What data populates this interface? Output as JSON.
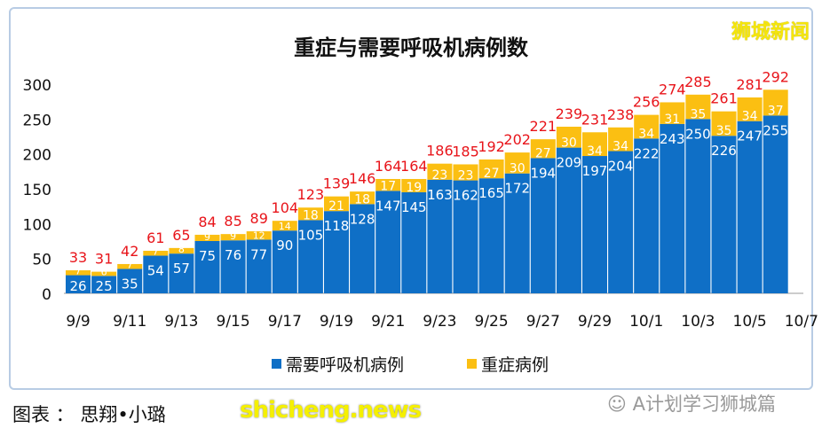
{
  "watermark_logo": "狮城新闻",
  "caption": "图表 ： 思翔•小璐",
  "site_watermark": "shicheng.news",
  "wechat_label": "A计划学习狮城篇",
  "chart_data": {
    "type": "bar",
    "stacked": true,
    "title": "重症与需要呼吸机病例数",
    "xlabel": "",
    "ylabel": "",
    "ylim": [
      0,
      300
    ],
    "yticks": [
      0,
      50,
      100,
      150,
      200,
      250,
      300
    ],
    "categories": [
      "9/9",
      "9/10",
      "9/11",
      "9/12",
      "9/13",
      "9/14",
      "9/15",
      "9/16",
      "9/17",
      "9/18",
      "9/19",
      "9/20",
      "9/21",
      "9/22",
      "9/23",
      "9/24",
      "9/25",
      "9/26",
      "9/27",
      "9/28",
      "9/29",
      "9/30",
      "10/1",
      "10/2",
      "10/3",
      "10/4",
      "10/5",
      "10/6"
    ],
    "xtick_labels": [
      "9/9",
      "9/11",
      "9/13",
      "9/15",
      "9/17",
      "9/19",
      "9/21",
      "9/23",
      "9/25",
      "9/27",
      "9/29",
      "10/1",
      "10/3",
      "10/5",
      "10/7"
    ],
    "series": [
      {
        "name": "需要呼吸机病例",
        "color": "#0f6fc6",
        "values": [
          26,
          25,
          35,
          54,
          57,
          75,
          76,
          77,
          90,
          105,
          118,
          128,
          147,
          145,
          163,
          162,
          165,
          172,
          194,
          209,
          197,
          204,
          222,
          243,
          250,
          226,
          247,
          255
        ]
      },
      {
        "name": "重症病例",
        "color": "#fbbf12",
        "values": [
          7,
          6,
          7,
          7,
          8,
          9,
          9,
          12,
          14,
          18,
          21,
          18,
          17,
          19,
          23,
          23,
          27,
          30,
          27,
          30,
          34,
          34,
          34,
          31,
          35,
          35,
          34,
          37
        ]
      }
    ],
    "totals": [
      33,
      31,
      42,
      61,
      65,
      84,
      85,
      89,
      104,
      123,
      139,
      146,
      164,
      164,
      186,
      185,
      192,
      202,
      221,
      239,
      231,
      238,
      256,
      274,
      285,
      261,
      281,
      292
    ],
    "total_label_color": "#e8141a",
    "legend_placement": "bottom",
    "grid": false
  }
}
